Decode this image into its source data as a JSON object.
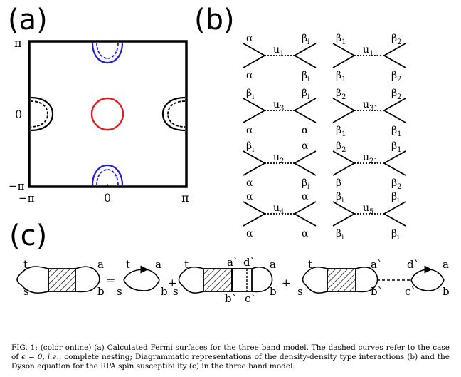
{
  "panels": {
    "a": {
      "label": "(a)",
      "axis_ticks": {
        "y_top": "π",
        "y_mid": "0",
        "y_bottom": "−π",
        "x_left": "−π",
        "x_mid": "0",
        "x_right": "π"
      },
      "colors": {
        "hole_pocket": "#e02020",
        "electron_pocket_y": "#2020d0",
        "electron_pocket_x": "#000000",
        "frame": "#000000"
      }
    },
    "b": {
      "label": "(b)",
      "vertices": [
        {
          "coupling": "u",
          "sub": "1",
          "tl": "α",
          "bl": "α",
          "tr": "β",
          "tr_sub": "i",
          "br": "β",
          "br_sub": "i"
        },
        {
          "coupling": "u",
          "sub": "11",
          "tl": "β",
          "tl_sub": "1",
          "bl": "β",
          "bl_sub": "1",
          "tr": "β",
          "tr_sub": "2",
          "br": "β",
          "br_sub": "2"
        },
        {
          "coupling": "u",
          "sub": "3",
          "tl": "β",
          "tl_sub": "i",
          "bl": "α",
          "tr": "β",
          "tr_sub": "i",
          "br": "α"
        },
        {
          "coupling": "u",
          "sub": "31",
          "tl": "β",
          "tl_sub": "2",
          "bl": "β",
          "bl_sub": "1",
          "tr": "β",
          "tr_sub": "2",
          "br": "β",
          "br_sub": "1"
        },
        {
          "coupling": "u",
          "sub": "2",
          "tl": "β",
          "tl_sub": "i",
          "bl": "α",
          "tr": "α",
          "br": "β",
          "br_sub": "i"
        },
        {
          "coupling": "u",
          "sub": "21",
          "tl": "β",
          "tl_sub": "2",
          "bl": "β",
          "tr": "β",
          "tr_sub": "1",
          "br": "β",
          "br_sub": "2"
        },
        {
          "coupling": "u",
          "sub": "4",
          "tl": "α",
          "bl": "α",
          "tr": "α",
          "br": "α"
        },
        {
          "coupling": "u",
          "sub": "5",
          "tl": "β",
          "tl_sub": "i",
          "bl": "β",
          "bl_sub": "i",
          "tr": "β",
          "tr_sub": "i",
          "br": "β",
          "br_sub": "i"
        }
      ]
    },
    "c": {
      "label": "(c)",
      "labels": {
        "t": "t",
        "s": "s",
        "a": "a",
        "b": "b",
        "a_prime": "a`",
        "b_prime": "b`",
        "c_prime": "c`",
        "d_prime": "d`",
        "equals": "=",
        "plus": "+"
      }
    }
  },
  "caption": {
    "fig": "FIG. 1:",
    "text1": " (color online) (a) Calculated Fermi surfaces for the three band model. The dashed curves refer to the case of ",
    "math": "ϵ = 0,",
    "ie": "i.e.",
    "text2": ", complete nesting; Diagrammatic representations of the density-density type interactions (b) and the Dyson equation for the RPA spin susceptibility (c) in the three band model."
  }
}
